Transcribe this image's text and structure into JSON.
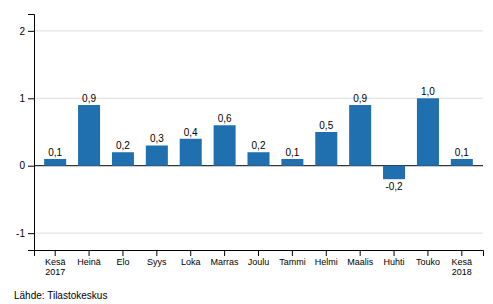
{
  "chart_data": {
    "type": "bar",
    "categories": [
      "Kesä\n2017",
      "Heinä",
      "Elo",
      "Syys",
      "Loka",
      "Marras",
      "Joulu",
      "Tammi",
      "Helmi",
      "Maalis",
      "Huhti",
      "Touko",
      "Kesä\n2018"
    ],
    "values": [
      0.1,
      0.9,
      0.2,
      0.3,
      0.4,
      0.6,
      0.2,
      0.1,
      0.5,
      0.9,
      -0.2,
      1.0,
      0.1
    ],
    "value_labels": [
      "0,1",
      "0,9",
      "0,2",
      "0,3",
      "0,4",
      "0,6",
      "0,2",
      "0,1",
      "0,5",
      "0,9",
      "-0,2",
      "1,0",
      "0,1"
    ],
    "data_labels": true,
    "color": "#2070b0",
    "ylim": [
      -1.25,
      2.25
    ],
    "yticks": [
      -1,
      0,
      1,
      2
    ],
    "grid": true,
    "source": "Lähde: Tilastokeskus"
  }
}
